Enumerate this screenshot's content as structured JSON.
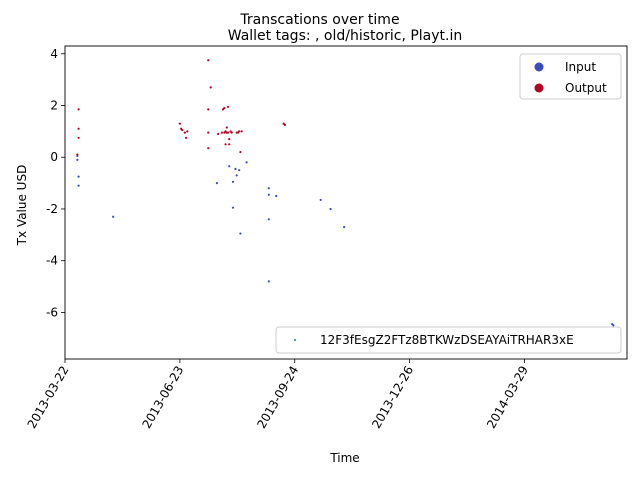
{
  "chart_data": {
    "type": "scatter",
    "title": "Transcations over time",
    "subtitle": "Wallet tags: , old/historic, Playt.in",
    "xlabel": "Time",
    "ylabel": "Tx Value USD",
    "xlim": [
      "2013-03-22",
      "2014-06-20"
    ],
    "ylim": [
      -7.8,
      4.3
    ],
    "x_ticks": [
      "2013-03-22",
      "2013-06-23",
      "2013-09-24",
      "2013-12-26",
      "2014-03-29"
    ],
    "y_ticks": [
      4,
      2,
      0,
      -2,
      -4,
      -6
    ],
    "grid": false,
    "legends": [
      {
        "placement": "upper-right",
        "entries": [
          {
            "label": "Input",
            "color": "#3b4cc0"
          },
          {
            "label": "Output",
            "color": "#b40426"
          }
        ]
      },
      {
        "placement": "lower-right",
        "entries": [
          {
            "label": "12F3fEsgZ2FTz8BTKWzDSEAYAiTRHAR3xE",
            "color": "#1f77b4"
          }
        ]
      }
    ],
    "series": [
      {
        "name": "Input",
        "color": "#3b4cc0",
        "points": [
          {
            "x": "2013-04-01",
            "y": 0.05
          },
          {
            "x": "2013-04-01",
            "y": -0.1
          },
          {
            "x": "2013-04-02",
            "y": -0.75
          },
          {
            "x": "2013-04-02",
            "y": -1.1
          },
          {
            "x": "2013-04-30",
            "y": -2.3
          },
          {
            "x": "2013-07-23",
            "y": -1.0
          },
          {
            "x": "2013-08-02",
            "y": -0.35
          },
          {
            "x": "2013-08-05",
            "y": -1.95
          },
          {
            "x": "2013-08-05",
            "y": -0.95
          },
          {
            "x": "2013-08-07",
            "y": -0.45
          },
          {
            "x": "2013-08-08",
            "y": -0.7
          },
          {
            "x": "2013-08-10",
            "y": -0.5
          },
          {
            "x": "2013-08-11",
            "y": -2.95
          },
          {
            "x": "2013-08-16",
            "y": -0.2
          },
          {
            "x": "2013-09-03",
            "y": -1.2
          },
          {
            "x": "2013-09-03",
            "y": -1.45
          },
          {
            "x": "2013-09-03",
            "y": -2.4
          },
          {
            "x": "2013-09-03",
            "y": -4.8
          },
          {
            "x": "2013-09-09",
            "y": -1.5
          },
          {
            "x": "2013-10-15",
            "y": -1.65
          },
          {
            "x": "2013-10-23",
            "y": -2.0
          },
          {
            "x": "2013-11-03",
            "y": -2.7
          },
          {
            "x": "2014-06-08",
            "y": -6.45
          },
          {
            "x": "2014-06-09",
            "y": -6.5
          }
        ]
      },
      {
        "name": "Output",
        "color": "#b40426",
        "points": [
          {
            "x": "2013-04-01",
            "y": 0.1
          },
          {
            "x": "2013-04-02",
            "y": 1.85
          },
          {
            "x": "2013-04-02",
            "y": 1.1
          },
          {
            "x": "2013-04-02",
            "y": 0.75
          },
          {
            "x": "2013-06-23",
            "y": 1.3
          },
          {
            "x": "2013-06-24",
            "y": 1.1
          },
          {
            "x": "2013-06-25",
            "y": 1.05
          },
          {
            "x": "2013-06-27",
            "y": 0.95
          },
          {
            "x": "2013-06-28",
            "y": 0.75
          },
          {
            "x": "2013-06-29",
            "y": 1.0
          },
          {
            "x": "2013-07-16",
            "y": 3.75
          },
          {
            "x": "2013-07-16",
            "y": 1.85
          },
          {
            "x": "2013-07-16",
            "y": 0.95
          },
          {
            "x": "2013-07-16",
            "y": 0.35
          },
          {
            "x": "2013-07-18",
            "y": 2.7
          },
          {
            "x": "2013-07-24",
            "y": 0.9
          },
          {
            "x": "2013-07-27",
            "y": 0.95
          },
          {
            "x": "2013-07-28",
            "y": 1.85
          },
          {
            "x": "2013-07-29",
            "y": 1.9
          },
          {
            "x": "2013-07-29",
            "y": 0.95
          },
          {
            "x": "2013-07-30",
            "y": 1.0
          },
          {
            "x": "2013-07-30",
            "y": 0.5
          },
          {
            "x": "2013-07-31",
            "y": 1.15
          },
          {
            "x": "2013-07-31",
            "y": 0.95
          },
          {
            "x": "2013-08-01",
            "y": 1.95
          },
          {
            "x": "2013-08-01",
            "y": 0.95
          },
          {
            "x": "2013-08-02",
            "y": 0.7
          },
          {
            "x": "2013-08-02",
            "y": 0.5
          },
          {
            "x": "2013-08-03",
            "y": 1.0
          },
          {
            "x": "2013-08-04",
            "y": 0.95
          },
          {
            "x": "2013-08-08",
            "y": 0.95
          },
          {
            "x": "2013-08-09",
            "y": 0.95
          },
          {
            "x": "2013-08-10",
            "y": 1.0
          },
          {
            "x": "2013-08-11",
            "y": 0.2
          },
          {
            "x": "2013-08-12",
            "y": 1.0
          },
          {
            "x": "2013-09-15",
            "y": 1.3
          },
          {
            "x": "2013-09-16",
            "y": 1.25
          }
        ]
      }
    ]
  }
}
